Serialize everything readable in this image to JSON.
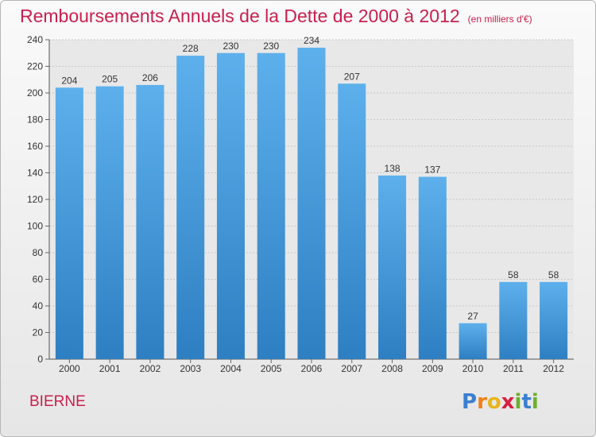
{
  "header": {
    "title": "Remboursements Annuels de la Dette de 2000 à 2012",
    "unit": "(en milliers d'€)"
  },
  "footer": {
    "commune": "BIERNE",
    "logo_letters": [
      "P",
      "r",
      "o",
      "x",
      "i",
      "t",
      "i"
    ],
    "logo_colors": [
      "#3a7fd0",
      "#f07f1a",
      "#e8b51a",
      "#d81e3e",
      "#6cb02c",
      "#3a7fd0",
      "#6cb02c"
    ]
  },
  "colors": {
    "bar_top": "#5db0ec",
    "bar_bottom": "#2e7fc2",
    "title": "#c8204e"
  },
  "chart_data": {
    "type": "bar",
    "categories": [
      "2000",
      "2001",
      "2002",
      "2003",
      "2004",
      "2005",
      "2006",
      "2007",
      "2008",
      "2009",
      "2010",
      "2011",
      "2012"
    ],
    "values": [
      204,
      205,
      206,
      228,
      230,
      230,
      234,
      207,
      138,
      137,
      27,
      58,
      58
    ],
    "yticks": [
      0,
      20,
      40,
      60,
      80,
      100,
      120,
      140,
      160,
      180,
      200,
      220,
      240
    ],
    "ylim": [
      0,
      240
    ],
    "grid": true,
    "data_labels": true
  }
}
